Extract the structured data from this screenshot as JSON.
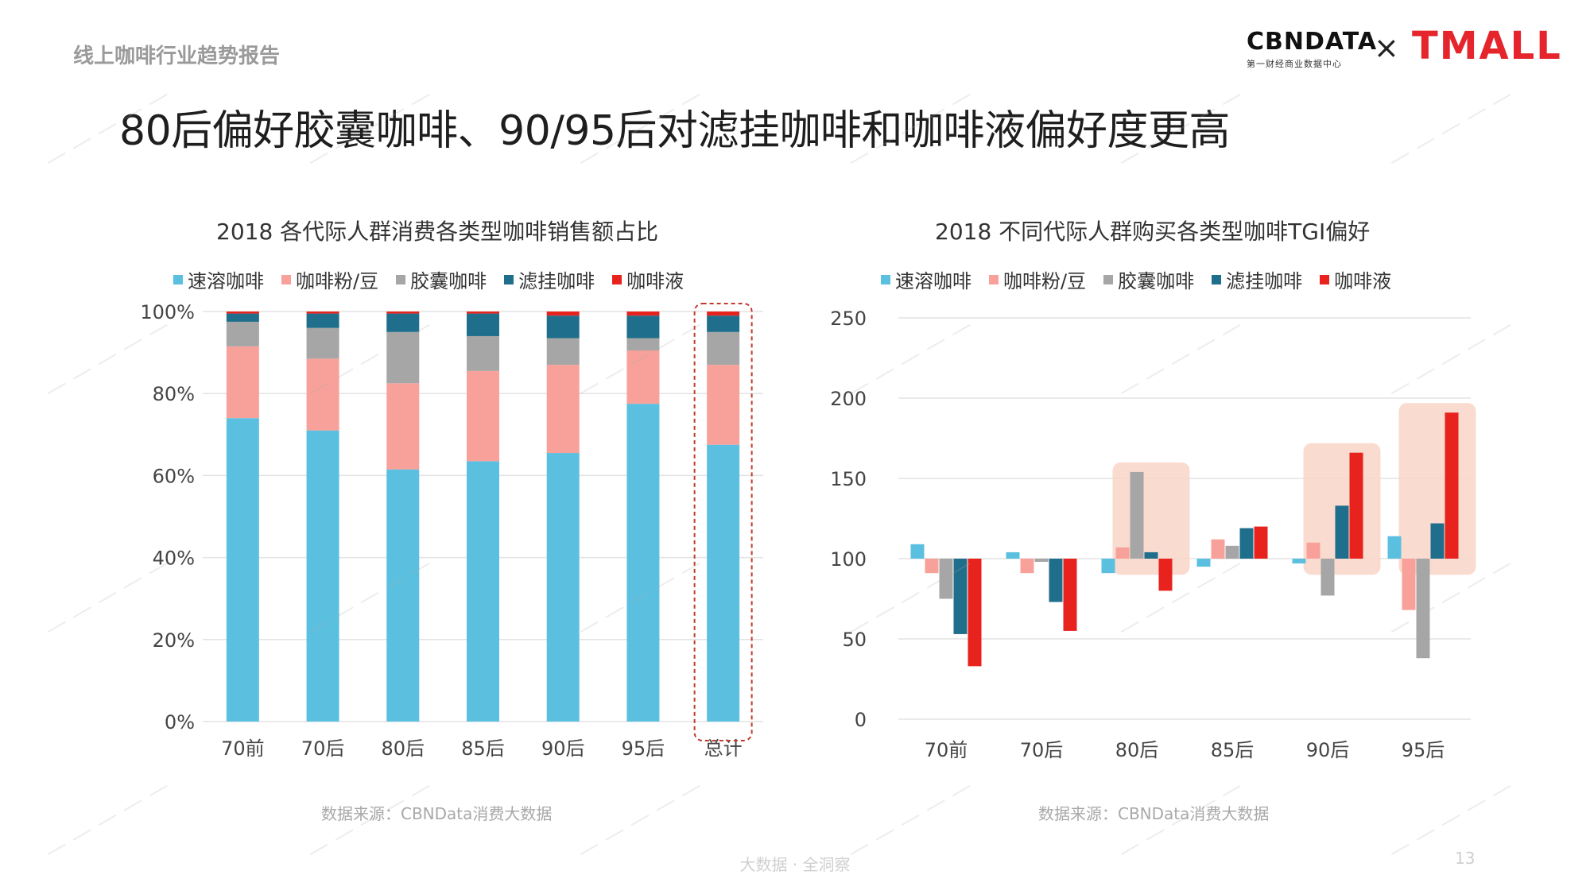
{
  "header": {
    "report_tag": "线上咖啡行业趋势报告",
    "headline": "80后偏好胶囊咖啡、90/95后对滤挂咖啡和咖啡液偏好度更高",
    "logo_cbn_main": "CBNDATA",
    "logo_cbn_sub": "第一财经商业数据中心",
    "logo_cross": "×",
    "logo_tmall": "TMALL"
  },
  "colors": {
    "instant": "#5bc0e0",
    "powder": "#f8a19a",
    "capsule": "#a6a6a6",
    "drip": "#1f6e8c",
    "liquid": "#e8231e",
    "highlight": "#f9d5c8",
    "total_border": "#c0392b"
  },
  "left_chart": {
    "title": "2018 各代际人群消费各类型咖啡销售额占比",
    "source": "数据来源：CBNData消费大数据"
  },
  "right_chart": {
    "title": "2018 不同代际人群购买各类型咖啡TGI偏好",
    "source": "数据来源：CBNData消费大数据"
  },
  "chart_data": [
    {
      "type": "bar",
      "stacked": true,
      "title": "2018 各代际人群消费各类型咖啡销售额占比",
      "categories": [
        "70前",
        "70后",
        "80后",
        "85后",
        "90后",
        "95后",
        "总计"
      ],
      "series": [
        {
          "name": "速溶咖啡",
          "values": [
            74,
            71,
            61.5,
            63.5,
            65.5,
            77.5,
            67.5
          ]
        },
        {
          "name": "咖啡粉/豆",
          "values": [
            17.5,
            17.5,
            21,
            22,
            21.5,
            13,
            19.5
          ]
        },
        {
          "name": "胶囊咖啡",
          "values": [
            6,
            7.5,
            12.5,
            8.5,
            6.5,
            3,
            8
          ]
        },
        {
          "name": "滤挂咖啡",
          "values": [
            2,
            3.5,
            4.5,
            5.5,
            5.5,
            5.5,
            4
          ]
        },
        {
          "name": "咖啡液",
          "values": [
            0.5,
            0.5,
            0.5,
            0.5,
            1,
            1,
            1
          ]
        }
      ],
      "yticks": [
        "0%",
        "20%",
        "40%",
        "60%",
        "80%",
        "100%"
      ],
      "ylim": [
        0,
        100
      ],
      "highlight_category": "总计",
      "legend": "top"
    },
    {
      "type": "bar",
      "title": "2018 不同代际人群购买各类型咖啡TGI偏好",
      "categories": [
        "70前",
        "70后",
        "80后",
        "85后",
        "90后",
        "95后"
      ],
      "baseline": 100,
      "series": [
        {
          "name": "速溶咖啡",
          "values": [
            109,
            104,
            91,
            95,
            97,
            114
          ]
        },
        {
          "name": "咖啡粉/豆",
          "values": [
            91,
            91,
            107,
            112,
            110,
            68
          ]
        },
        {
          "name": "胶囊咖啡",
          "values": [
            75,
            98,
            154,
            108,
            77,
            38
          ]
        },
        {
          "name": "滤挂咖啡",
          "values": [
            53,
            73,
            104,
            119,
            133,
            122
          ]
        },
        {
          "name": "咖啡液",
          "values": [
            33,
            55,
            80,
            120,
            166,
            191
          ]
        }
      ],
      "yticks": [
        "0",
        "50",
        "100",
        "150",
        "200",
        "250"
      ],
      "ylim": [
        0,
        250
      ],
      "highlight_categories": [
        "80后",
        "90后",
        "95后"
      ],
      "legend": "top"
    }
  ],
  "footer": {
    "tagline": "大数据 · 全洞察",
    "page_number": "13"
  }
}
